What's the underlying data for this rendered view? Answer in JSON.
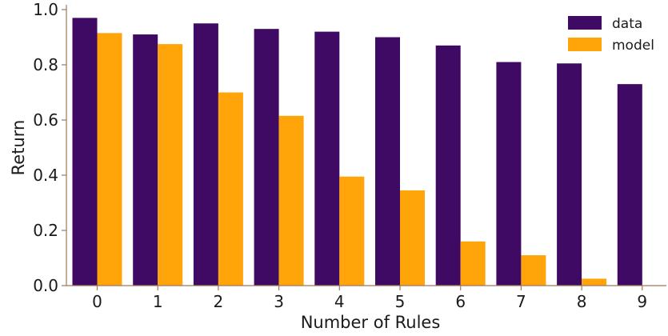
{
  "chart_data": {
    "type": "bar",
    "categories": [
      "0",
      "1",
      "2",
      "3",
      "4",
      "5",
      "6",
      "7",
      "8",
      "9"
    ],
    "series": [
      {
        "name": "data",
        "values": [
          0.97,
          0.91,
          0.95,
          0.93,
          0.92,
          0.9,
          0.87,
          0.81,
          0.805,
          0.73
        ]
      },
      {
        "name": "model",
        "values": [
          0.915,
          0.875,
          0.7,
          0.615,
          0.395,
          0.345,
          0.16,
          0.11,
          0.025,
          0.0
        ]
      }
    ],
    "title": "",
    "xlabel": "Number of Rules",
    "ylabel": "Return",
    "ylim": [
      0,
      1.0
    ],
    "yticks": [
      "0.0",
      "0.2",
      "0.4",
      "0.6",
      "0.8",
      "1.0"
    ],
    "grid": false,
    "legend_position": "top-right",
    "colors": {
      "data": "#3f0a63",
      "model": "#ffa50a",
      "axis": "#a0785a"
    }
  }
}
